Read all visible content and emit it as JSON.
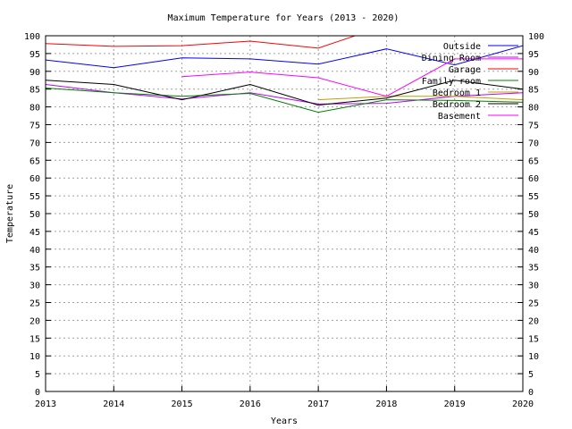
{
  "chart_data": {
    "type": "line",
    "title": "Maximum Temperature for Years (2013 - 2020)",
    "xlabel": "Years",
    "ylabel": "Temperature",
    "x": [
      2013,
      2014,
      2015,
      2016,
      2017,
      2018,
      2019,
      2020
    ],
    "xlim": [
      2013,
      2020
    ],
    "ylim": [
      0,
      100
    ],
    "y_tick_step": 5,
    "grid": true,
    "legend_position": "top-right",
    "series": [
      {
        "name": "Outside",
        "color": "#0000ff",
        "values": [
          93.2,
          91.0,
          93.8,
          93.5,
          92.0,
          96.3,
          91.8,
          97.2
        ]
      },
      {
        "name": "Dining Room",
        "color": "#c000ff",
        "values": [
          86.3,
          84.0,
          82.2,
          84.0,
          80.8,
          81.0,
          83.0,
          84.0
        ]
      },
      {
        "name": "Garage",
        "color": "#ff0000",
        "values": [
          97.8,
          97.0,
          97.2,
          98.5,
          96.5,
          103.0,
          null,
          null
        ]
      },
      {
        "name": "Family room",
        "color": "#008000",
        "values": [
          85.3,
          84.0,
          83.0,
          83.8,
          78.5,
          82.0,
          81.8,
          81.3
        ]
      },
      {
        "name": "Bedroom 1",
        "color": "#c0a000",
        "values": [
          null,
          null,
          null,
          null,
          82.0,
          83.0,
          83.0,
          82.0
        ]
      },
      {
        "name": "Bedroom 2",
        "color": "#000000",
        "values": [
          87.5,
          86.3,
          82.0,
          86.3,
          80.5,
          82.5,
          87.5,
          85.0
        ]
      },
      {
        "name": "Basement",
        "color": "#ff00ff",
        "values": [
          null,
          null,
          88.5,
          89.8,
          88.2,
          83.0,
          93.5,
          93.5
        ]
      }
    ]
  }
}
